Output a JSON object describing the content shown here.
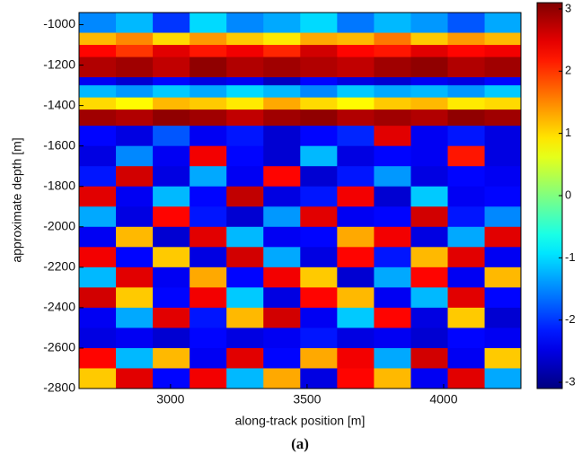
{
  "chart_data": {
    "type": "heatmap",
    "xlabel": "along-track position [m]",
    "ylabel": "approximate depth [m]",
    "caption": "(a)",
    "xlim": [
      2665,
      4283
    ],
    "ylim": [
      -2800,
      -940
    ],
    "xticks": [
      3000,
      3500,
      4000
    ],
    "yticks": [
      -1000,
      -1200,
      -1400,
      -1600,
      -1800,
      -2000,
      -2200,
      -2400,
      -2600,
      -2800
    ],
    "clim": [
      -3.1,
      3.1
    ],
    "cticks": [
      3,
      2,
      1,
      0,
      -1,
      -2,
      -3
    ],
    "colormap": "jet",
    "xbins": [
      2665,
      2800,
      2935,
      3070,
      3205,
      3340,
      3475,
      3610,
      3745,
      3880,
      4015,
      4150,
      4283
    ],
    "ybins": [
      -940,
      -1040,
      -1100,
      -1160,
      -1260,
      -1300,
      -1360,
      -1420,
      -1500,
      -1600,
      -1700,
      -1800,
      -1900,
      -2000,
      -2100,
      -2200,
      -2300,
      -2400,
      -2500,
      -2600,
      -2700,
      -2800
    ],
    "z": [
      [
        -1.5,
        -1.2,
        -2,
        -1,
        -1.5,
        -1.3,
        -1,
        -1.6,
        -1.2,
        -1.4,
        -1.8,
        -1.3
      ],
      [
        1.2,
        1.5,
        1,
        1.4,
        1.1,
        0.9,
        1.3,
        1.2,
        1.6,
        1.1,
        1.4,
        1.2
      ],
      [
        2.3,
        2,
        2.5,
        2.2,
        2.4,
        2.1,
        2.6,
        2.3,
        2.2,
        2.5,
        2.3,
        2.4
      ],
      [
        2.8,
        2.9,
        2.7,
        3,
        2.8,
        2.9,
        2.8,
        2.7,
        2.9,
        3,
        2.8,
        2.9
      ],
      [
        -2.4,
        -2.6,
        -2.3,
        -2.5,
        -2.4,
        -2.7,
        -2.3,
        -2.5,
        -2.6,
        -2.4,
        -2.5,
        -2.3
      ],
      [
        -1.2,
        -1.4,
        -1.1,
        -1.3,
        -1,
        -1.2,
        -1.5,
        -1.1,
        -1.3,
        -1.2,
        -1.4,
        -1.1
      ],
      [
        1,
        0.8,
        1.2,
        1.1,
        0.9,
        1.3,
        1,
        0.8,
        1.1,
        1.2,
        0.9,
        1
      ],
      [
        2.9,
        2.8,
        3,
        2.9,
        2.7,
        2.9,
        3,
        2.8,
        2.9,
        2.8,
        3,
        2.9
      ],
      [
        -2.3,
        -2.5,
        -1.8,
        -2.4,
        -2.2,
        -2.6,
        -2.3,
        -2.1,
        2.5,
        -2.4,
        -2.2,
        -2.5
      ],
      [
        -2.5,
        -1.5,
        -2.4,
        2.4,
        -2.3,
        -2.6,
        -1.2,
        -2.5,
        -2.3,
        -2.4,
        2.2,
        -2.5
      ],
      [
        -2.2,
        2.6,
        -2.5,
        -1.3,
        -2.4,
        2.3,
        -2.6,
        -2.2,
        -1.4,
        -2.5,
        -2.3,
        -2.4
      ],
      [
        2.5,
        -2.4,
        -1.2,
        -2.3,
        2.7,
        -2.5,
        -2.2,
        2.4,
        -2.6,
        -1.1,
        -2.4,
        -2.3
      ],
      [
        -1.3,
        -2.5,
        2.3,
        -2.2,
        -2.6,
        -1.4,
        2.5,
        -2.4,
        -2.3,
        2.6,
        -2.2,
        -1.5
      ],
      [
        -2.4,
        1.2,
        -2.6,
        2.5,
        -1.2,
        -2.4,
        -2.3,
        1.3,
        2.4,
        -2.5,
        -1.3,
        2.5
      ],
      [
        2.4,
        -2.3,
        1.1,
        -2.5,
        2.6,
        -1.3,
        -2.5,
        2.3,
        -2.2,
        1.2,
        2.5,
        -2.4
      ],
      [
        -1.2,
        2.5,
        -2.4,
        1.3,
        -2.3,
        2.4,
        1.1,
        -2.6,
        -1.3,
        2.3,
        -2.4,
        1.2
      ],
      [
        2.6,
        1.1,
        -2.3,
        2.4,
        -1.1,
        -2.5,
        2.3,
        1.2,
        -2.4,
        -1.2,
        2.5,
        -2.3
      ],
      [
        -2.4,
        -1.3,
        2.5,
        -2.2,
        1.2,
        2.6,
        -2.4,
        -1.1,
        2.3,
        -2.5,
        1.1,
        -2.6
      ],
      [
        -2.5,
        -2.4,
        -2.6,
        -2.3,
        -2.5,
        -2.4,
        -2.2,
        -2.5,
        -2.4,
        -2.6,
        -2.3,
        -2.4
      ],
      [
        2.3,
        -1.2,
        1.2,
        -2.4,
        2.5,
        -2.3,
        1.3,
        2.4,
        -1.3,
        2.6,
        -2.4,
        1.1
      ],
      [
        1.1,
        2.5,
        -2.3,
        2.4,
        -1.2,
        1.3,
        -2.5,
        2.3,
        1.2,
        -2.4,
        2.5,
        -1.3
      ]
    ]
  }
}
